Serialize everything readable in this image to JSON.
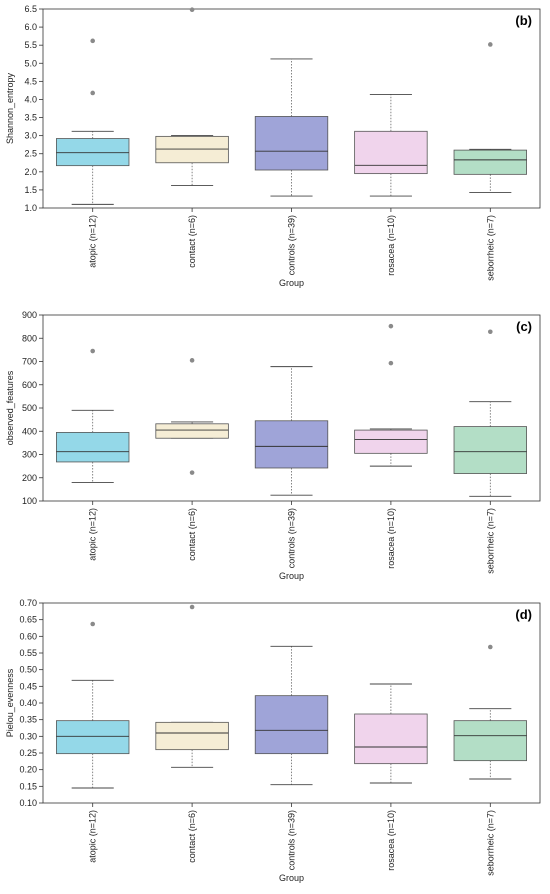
{
  "chart_data": [
    {
      "type": "box",
      "panel_label": "(b)",
      "ylabel": "Shannon_entropy",
      "xlabel": "Group",
      "ylim": [
        1.0,
        6.5
      ],
      "yticks": [
        1.0,
        1.5,
        2.0,
        2.5,
        3.0,
        3.5,
        4.0,
        4.5,
        5.0,
        5.5,
        6.0,
        6.5
      ],
      "ytick_labels": [
        "1.0",
        "1.5",
        "2.0",
        "2.5",
        "3.0",
        "3.5",
        "4.0",
        "4.5",
        "5.0",
        "5.5",
        "6.0",
        "6.5"
      ],
      "categories": [
        "atopic (n=12)",
        "contact (n=6)",
        "controls (n=39)",
        "rosacea (n=10)",
        "seborrheic (n=7)"
      ],
      "boxes": [
        {
          "min": 1.1,
          "q1": 2.17,
          "median": 2.53,
          "q3": 2.92,
          "max": 3.12,
          "outliers": [
            4.18,
            5.62
          ]
        },
        {
          "min": 1.62,
          "q1": 2.25,
          "median": 2.63,
          "q3": 2.98,
          "max": 3.0,
          "outliers": [
            6.48
          ]
        },
        {
          "min": 1.33,
          "q1": 2.05,
          "median": 2.57,
          "q3": 3.53,
          "max": 5.12,
          "outliers": []
        },
        {
          "min": 1.33,
          "q1": 1.95,
          "median": 2.18,
          "q3": 3.12,
          "max": 4.14,
          "outliers": []
        },
        {
          "min": 1.43,
          "q1": 1.93,
          "median": 2.33,
          "q3": 2.6,
          "max": 2.62,
          "outliers": [
            5.52
          ]
        }
      ]
    },
    {
      "type": "box",
      "panel_label": "(c)",
      "ylabel": "observed_features",
      "xlabel": "Group",
      "ylim": [
        100,
        900
      ],
      "yticks": [
        100,
        200,
        300,
        400,
        500,
        600,
        700,
        800,
        900
      ],
      "ytick_labels": [
        "100",
        "200",
        "300",
        "400",
        "500",
        "600",
        "700",
        "800",
        "900"
      ],
      "categories": [
        "atopic (n=12)",
        "contact (n=6)",
        "controls (n=39)",
        "rosacea (n=10)",
        "seborrheic (n=7)"
      ],
      "boxes": [
        {
          "min": 180,
          "q1": 268,
          "median": 312,
          "q3": 395,
          "max": 490,
          "outliers": [
            745
          ]
        },
        {
          "min": 370,
          "q1": 370,
          "median": 405,
          "q3": 432,
          "max": 440,
          "outliers": [
            222,
            705
          ]
        },
        {
          "min": 125,
          "q1": 242,
          "median": 335,
          "q3": 445,
          "max": 678,
          "outliers": []
        },
        {
          "min": 250,
          "q1": 305,
          "median": 365,
          "q3": 405,
          "max": 410,
          "outliers": [
            693,
            852
          ]
        },
        {
          "min": 120,
          "q1": 218,
          "median": 312,
          "q3": 420,
          "max": 527,
          "outliers": [
            828
          ]
        }
      ]
    },
    {
      "type": "box",
      "panel_label": "(d)",
      "ylabel": "Pielou_evenness",
      "xlabel": "Group",
      "ylim": [
        0.1,
        0.7
      ],
      "yticks": [
        0.1,
        0.15,
        0.2,
        0.25,
        0.3,
        0.35,
        0.4,
        0.45,
        0.5,
        0.55,
        0.6,
        0.65,
        0.7
      ],
      "ytick_labels": [
        "0.10",
        "0.15",
        "0.20",
        "0.25",
        "0.30",
        "0.35",
        "0.40",
        "0.45",
        "0.50",
        "0.55",
        "0.60",
        "0.65",
        "0.70"
      ],
      "categories": [
        "atopic (n=12)",
        "contact (n=6)",
        "controls (n=39)",
        "rosacea (n=10)",
        "seborrheic (n=7)"
      ],
      "boxes": [
        {
          "min": 0.145,
          "q1": 0.248,
          "median": 0.3,
          "q3": 0.347,
          "max": 0.468,
          "outliers": [
            0.637
          ]
        },
        {
          "min": 0.207,
          "q1": 0.26,
          "median": 0.31,
          "q3": 0.342,
          "max": 0.342,
          "outliers": [
            0.688
          ]
        },
        {
          "min": 0.155,
          "q1": 0.248,
          "median": 0.318,
          "q3": 0.422,
          "max": 0.57,
          "outliers": []
        },
        {
          "min": 0.16,
          "q1": 0.218,
          "median": 0.268,
          "q3": 0.367,
          "max": 0.457,
          "outliers": []
        },
        {
          "min": 0.172,
          "q1": 0.227,
          "median": 0.302,
          "q3": 0.347,
          "max": 0.383,
          "outliers": [
            0.568
          ]
        }
      ]
    }
  ],
  "colors": {
    "boxes": [
      "#94d8e8",
      "#f5edd5",
      "#9fa4d8",
      "#f0d4ec",
      "#b3dec6"
    ],
    "outlier": "#8a8a8a",
    "axis": "#333333",
    "whisker": "#666666"
  }
}
